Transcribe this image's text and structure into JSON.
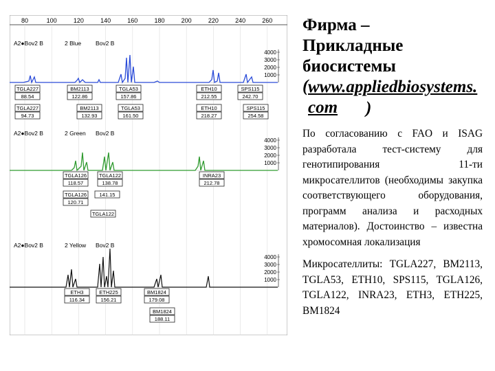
{
  "scale_ticks": [
    "80",
    "100",
    "120",
    "140",
    "160",
    "180",
    "200",
    "220",
    "240",
    "260"
  ],
  "y_ticks": [
    "4000",
    "3000",
    "2000",
    "1000"
  ],
  "panels": [
    {
      "header_left": "A2●Bov2 B",
      "header_mid": "2 Blue",
      "header_right": "Bov2 B",
      "color": "#2a4bd8",
      "labels": [
        {
          "name": "TGLA227",
          "value": "88.54"
        },
        {
          "name": "BM2113",
          "value": "122.86"
        },
        {
          "name": "TGLA53",
          "value": "157.86"
        },
        {
          "name": "ETH10",
          "value": "212.55"
        },
        {
          "name": "SPS115",
          "value": "242.70"
        },
        {
          "name": "TGLA227",
          "value": "94.73"
        },
        {
          "name": "BM2113",
          "value": "132.93"
        },
        {
          "name": "TGLA53",
          "value": "161.50"
        },
        {
          "name": "ETH10",
          "value": "218.27"
        },
        {
          "name": "SPS115",
          "value": "254.58"
        }
      ]
    },
    {
      "header_left": "A2●Bov2 B",
      "header_mid": "2 Green",
      "header_right": "Bov2 B",
      "color": "#2f9a2f",
      "labels": [
        {
          "name": "TGLA126",
          "value": "118.57"
        },
        {
          "name": "TGLA122",
          "value": "138.78"
        },
        {
          "name": "INRA23",
          "value": "212.78"
        },
        {
          "name": "TGLA126",
          "value": "120.71"
        },
        {
          "name": "",
          "value": "141.15"
        },
        {
          "name": "TGLA122",
          "value": ""
        }
      ]
    },
    {
      "header_left": "A2●Bov2 B",
      "header_mid": "2 Yellow",
      "header_right": "Bov2 B",
      "color": "#111111",
      "labels": [
        {
          "name": "ETH3",
          "value": "116.34"
        },
        {
          "name": "ETH225",
          "value": "156.21"
        },
        {
          "name": "BM1824",
          "value": "179.08"
        },
        {
          "name": "BM1824",
          "value": "188.11"
        }
      ]
    }
  ],
  "right": {
    "title_line1": "Фирма –",
    "title_line2": "Прикладные",
    "title_line3": "биосистемы",
    "link_open": "(",
    "link_text": "www.appliedbiosystems.com",
    "link_close": ")",
    "paragraph1": "По согласованию с FAO и ISAG разработала тест-систему для генотипирования 11-ти микросателлитов (необходимы закупка соответствующего оборудования, программ анализа и расходных материалов). Достоинство – известна хромосомная локализация",
    "paragraph2": "Микросателлиты: TGLA227, BM2113, TGLA53, ETH10, SPS115, TGLA126, TGLA122, INRA23, ETH3, ETH225, BM1824"
  }
}
